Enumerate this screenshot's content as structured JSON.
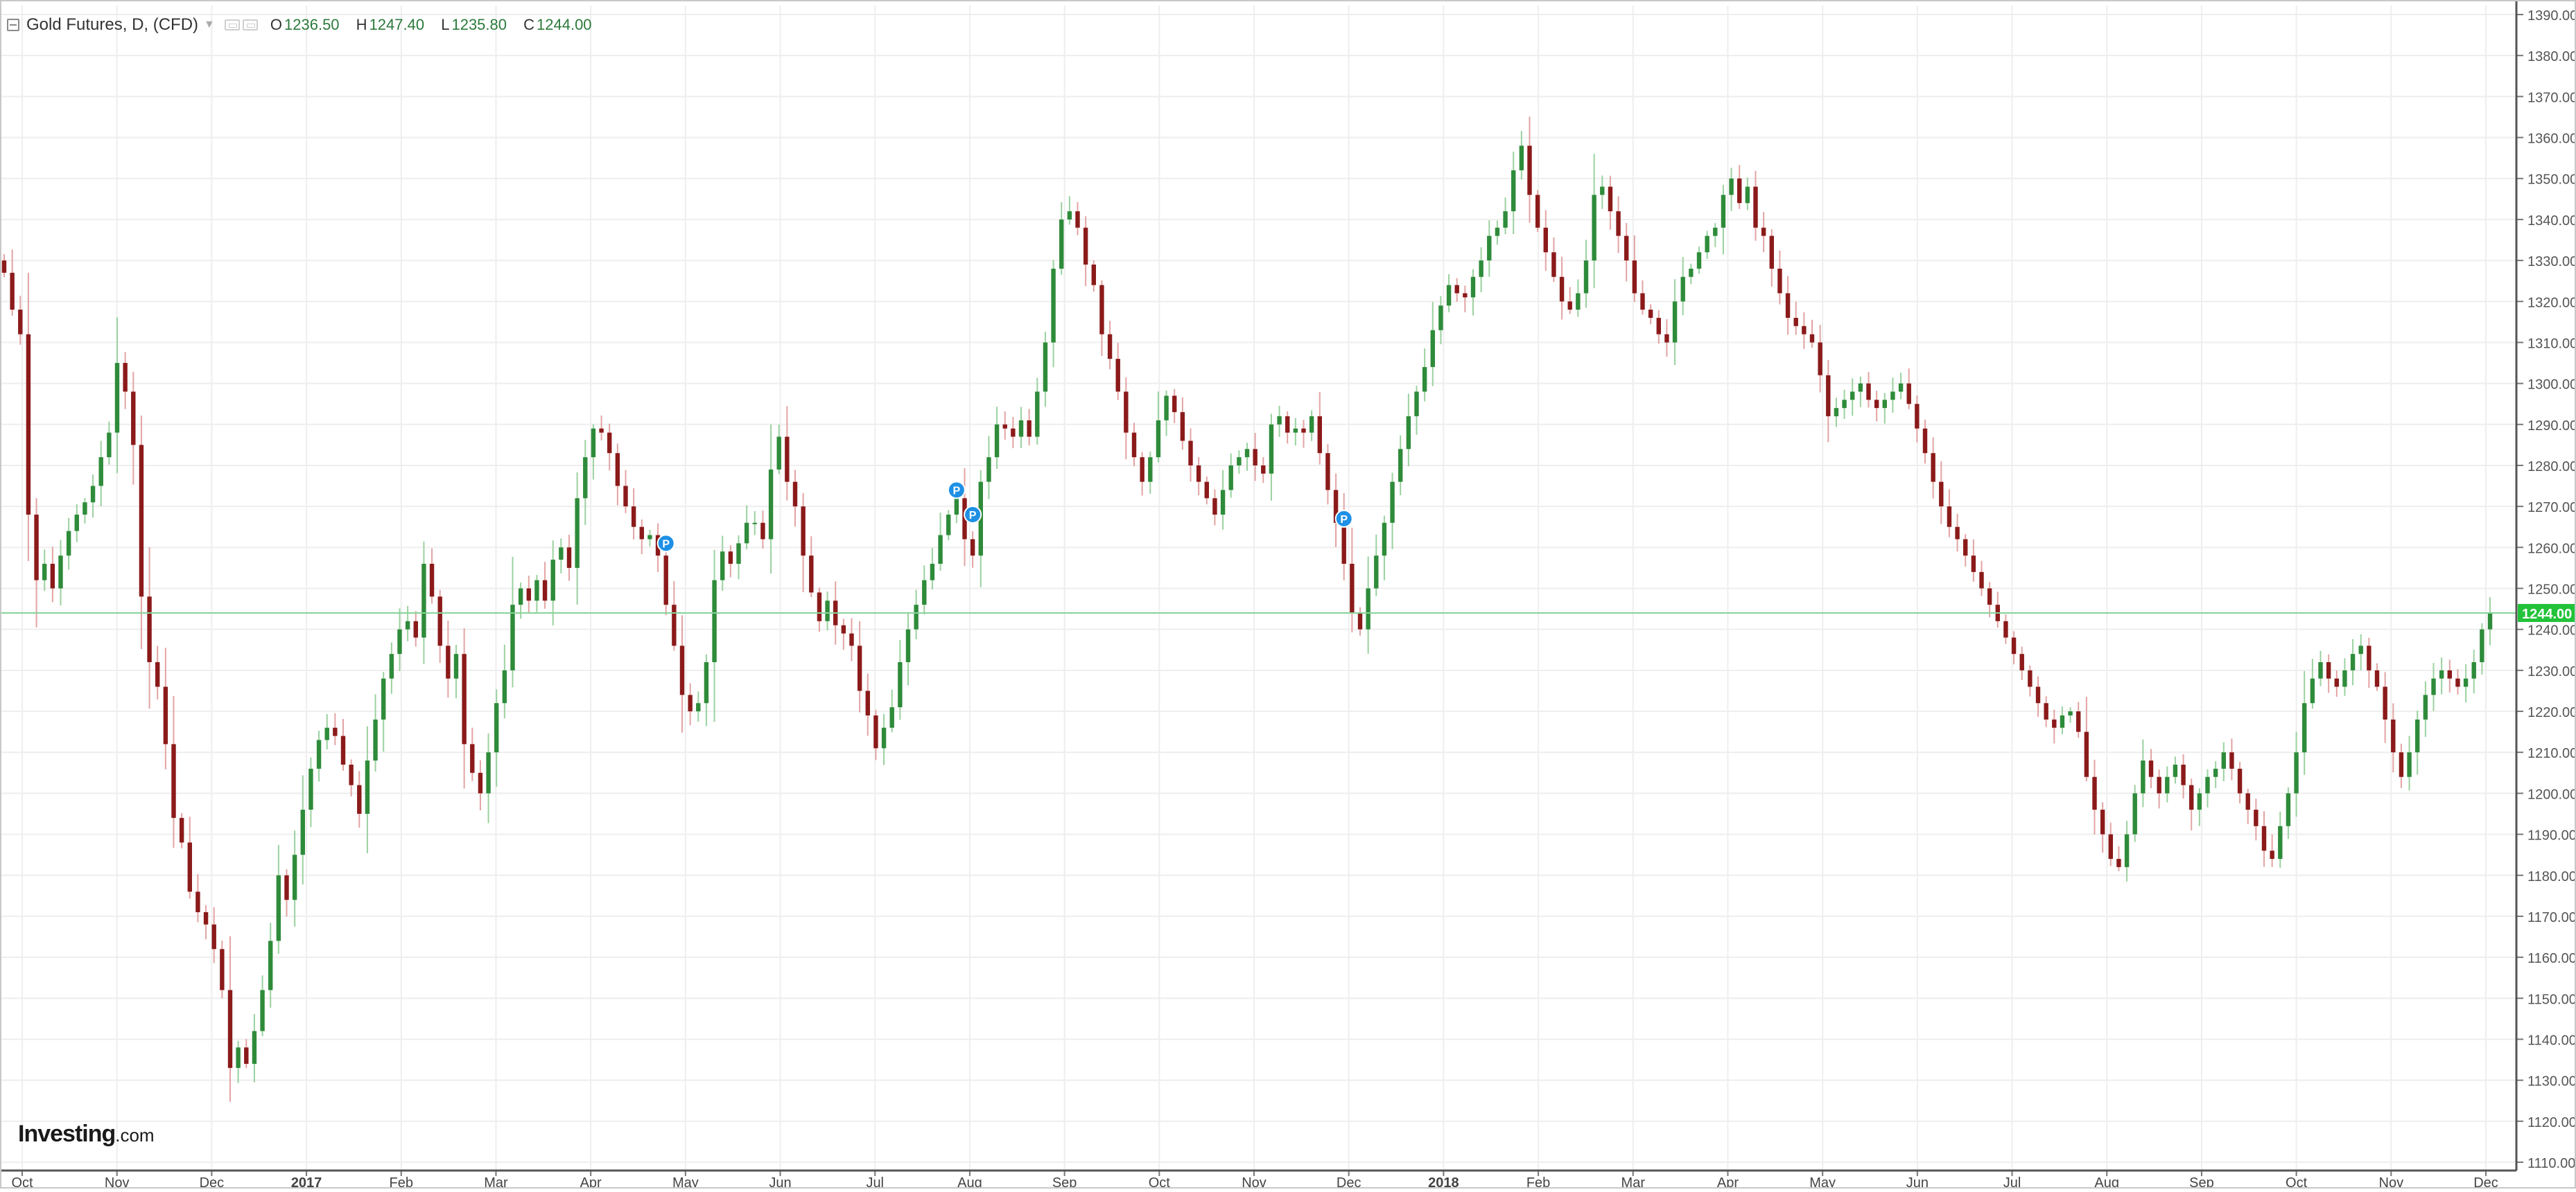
{
  "legend": {
    "symbol": "Gold Futures, D, (CFD)",
    "o_label": "O",
    "o_value": "1236.50",
    "h_label": "H",
    "h_value": "1247.40",
    "l_label": "L",
    "l_value": "1235.80",
    "c_label": "C",
    "c_value": "1244.00"
  },
  "brand": {
    "name": "Investing",
    "suffix": ".com"
  },
  "colors": {
    "up": "#2e8b3a",
    "down": "#8b1a1a",
    "grid": "#eeeeee",
    "price_line": "#86d39a",
    "price_tag": "#22c33a",
    "marker": "#1e90e6"
  },
  "chart_data": {
    "type": "candlestick",
    "title": "Gold Futures, D, (CFD)",
    "ylim": [
      1110,
      1390
    ],
    "y_ticks": [
      "1110.00",
      "1120.00",
      "1130.00",
      "1140.00",
      "1150.00",
      "1160.00",
      "1170.00",
      "1180.00",
      "1190.00",
      "1200.00",
      "1210.00",
      "1220.00",
      "1230.00",
      "1240.00",
      "1250.00",
      "1260.00",
      "1270.00",
      "1280.00",
      "1290.00",
      "1300.00",
      "1310.00",
      "1320.00",
      "1330.00",
      "1340.00",
      "1350.00",
      "1360.00",
      "1370.00",
      "1380.00",
      "1390.00"
    ],
    "x_ticks": [
      {
        "label": "Oct",
        "bold": false
      },
      {
        "label": "Nov",
        "bold": false
      },
      {
        "label": "Dec",
        "bold": false
      },
      {
        "label": "2017",
        "bold": true
      },
      {
        "label": "Feb",
        "bold": false
      },
      {
        "label": "Mar",
        "bold": false
      },
      {
        "label": "Apr",
        "bold": false
      },
      {
        "label": "May",
        "bold": false
      },
      {
        "label": "Jun",
        "bold": false
      },
      {
        "label": "Jul",
        "bold": false
      },
      {
        "label": "Aug",
        "bold": false
      },
      {
        "label": "Sep",
        "bold": false
      },
      {
        "label": "Oct",
        "bold": false
      },
      {
        "label": "Nov",
        "bold": false
      },
      {
        "label": "Dec",
        "bold": false
      },
      {
        "label": "2018",
        "bold": true
      },
      {
        "label": "Feb",
        "bold": false
      },
      {
        "label": "Mar",
        "bold": false
      },
      {
        "label": "Apr",
        "bold": false
      },
      {
        "label": "May",
        "bold": false
      },
      {
        "label": "Jun",
        "bold": false
      },
      {
        "label": "Jul",
        "bold": false
      },
      {
        "label": "Aug",
        "bold": false
      },
      {
        "label": "Sep",
        "bold": false
      },
      {
        "label": "Oct",
        "bold": false
      },
      {
        "label": "Nov",
        "bold": false
      },
      {
        "label": "Dec",
        "bold": false
      }
    ],
    "x_ticks_note": "monthly ticks",
    "last_price": "1244.00",
    "markers": [
      {
        "label": "P",
        "index": 82,
        "price": 1261
      },
      {
        "label": "P",
        "index": 118,
        "price": 1274
      },
      {
        "label": "P",
        "index": 120,
        "price": 1268
      },
      {
        "label": "P",
        "index": 166,
        "price": 1267
      }
    ],
    "close": [
      1327,
      1318,
      1312,
      1268,
      1252,
      1256,
      1250,
      1258,
      1264,
      1268,
      1271,
      1275,
      1282,
      1288,
      1305,
      1298,
      1285,
      1248,
      1232,
      1226,
      1212,
      1194,
      1188,
      1176,
      1171,
      1168,
      1162,
      1152,
      1133,
      1138,
      1134,
      1142,
      1152,
      1164,
      1180,
      1174,
      1185,
      1196,
      1206,
      1213,
      1216,
      1214,
      1207,
      1202,
      1195,
      1208,
      1218,
      1228,
      1234,
      1240,
      1242,
      1238,
      1256,
      1248,
      1236,
      1228,
      1234,
      1212,
      1205,
      1200,
      1210,
      1222,
      1230,
      1246,
      1250,
      1247,
      1252,
      1247,
      1257,
      1260,
      1255,
      1272,
      1282,
      1289,
      1288,
      1283,
      1275,
      1270,
      1265,
      1262,
      1263,
      1258,
      1246,
      1236,
      1224,
      1220,
      1222,
      1232,
      1252,
      1259,
      1256,
      1261,
      1266,
      1266,
      1262,
      1279,
      1287,
      1276,
      1270,
      1258,
      1249,
      1242,
      1247,
      1241,
      1239,
      1236,
      1225,
      1219,
      1211,
      1216,
      1221,
      1232,
      1240,
      1246,
      1252,
      1256,
      1263,
      1268,
      1272,
      1262,
      1258,
      1276,
      1282,
      1290,
      1289,
      1287,
      1291,
      1287,
      1298,
      1310,
      1328,
      1340,
      1342,
      1338,
      1329,
      1324,
      1312,
      1306,
      1298,
      1288,
      1282,
      1276,
      1282,
      1291,
      1297,
      1293,
      1286,
      1280,
      1276,
      1272,
      1268,
      1274,
      1280,
      1282,
      1284,
      1280,
      1278,
      1290,
      1292,
      1288,
      1289,
      1288,
      1292,
      1283,
      1274,
      1266,
      1256,
      1244,
      1240,
      1250,
      1258,
      1266,
      1276,
      1284,
      1292,
      1298,
      1304,
      1313,
      1319,
      1324,
      1322,
      1321,
      1326,
      1330,
      1336,
      1338,
      1342,
      1352,
      1358,
      1346,
      1338,
      1332,
      1326,
      1320,
      1318,
      1322,
      1330,
      1346,
      1348,
      1342,
      1336,
      1330,
      1322,
      1318,
      1316,
      1312,
      1310,
      1320,
      1326,
      1328,
      1332,
      1336,
      1338,
      1346,
      1350,
      1344,
      1348,
      1338,
      1336,
      1328,
      1322,
      1316,
      1314,
      1312,
      1310,
      1302,
      1292,
      1294,
      1296,
      1298,
      1300,
      1296,
      1294,
      1296,
      1298,
      1300,
      1295,
      1289,
      1283,
      1276,
      1270,
      1265,
      1262,
      1258,
      1254,
      1250,
      1246,
      1242,
      1238,
      1234,
      1230,
      1226,
      1222,
      1218,
      1216,
      1219,
      1220,
      1215,
      1204,
      1196,
      1190,
      1184,
      1182,
      1190,
      1200,
      1208,
      1204,
      1200,
      1204,
      1207,
      1202,
      1196,
      1200,
      1204,
      1206,
      1210,
      1206,
      1200,
      1196,
      1192,
      1186,
      1184,
      1192,
      1200,
      1210,
      1222,
      1228,
      1232,
      1228,
      1226,
      1230,
      1234,
      1236,
      1230,
      1226,
      1218,
      1210,
      1204,
      1210,
      1218,
      1224,
      1228,
      1230,
      1228,
      1226,
      1228,
      1232,
      1240,
      1244
    ]
  }
}
